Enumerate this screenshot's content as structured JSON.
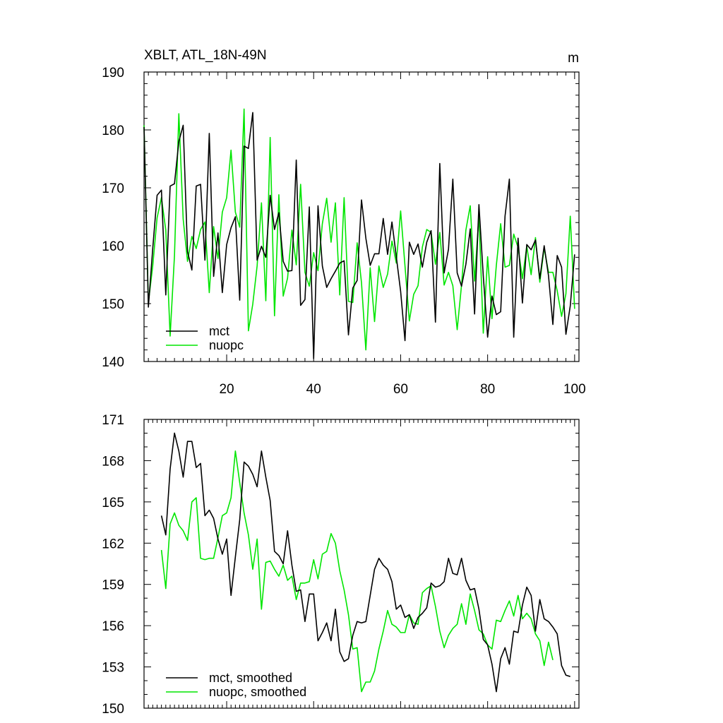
{
  "figure": {
    "title": "XBLT, ATL_18N-49N",
    "units": "m"
  },
  "chart_data": [
    {
      "type": "line",
      "title": "XBLT, ATL_18N-49N",
      "units_label": "m",
      "xlim": [
        1,
        101
      ],
      "ylim": [
        140,
        190
      ],
      "x_ticks": [
        20,
        40,
        60,
        80,
        100
      ],
      "x_tick_labels": [
        "20",
        "40",
        "60",
        "80",
        "100"
      ],
      "y_ticks": [
        140,
        150,
        160,
        170,
        180,
        190
      ],
      "y_tick_labels": [
        "140",
        "150",
        "160",
        "170",
        "180",
        "190"
      ],
      "legend_placement": "bottom-left",
      "series": [
        {
          "name": "mct",
          "color": "#000000",
          "x_start": 1,
          "values": [
            180.5,
            149.4,
            159.5,
            168.7,
            169.6,
            151.5,
            170.3,
            170.7,
            178.0,
            180.8,
            159.0,
            155.8,
            170.3,
            170.6,
            157.5,
            179.4,
            154.7,
            162.2,
            151.9,
            160.2,
            163.1,
            165.0,
            150.6,
            177.2,
            176.8,
            183.0,
            157.5,
            159.9,
            158.0,
            168.7,
            162.8,
            165.7,
            157.3,
            155.6,
            155.7,
            174.8,
            149.7,
            150.7,
            166.7,
            140.5,
            166.9,
            156.5,
            152.8,
            154.3,
            155.6,
            157.0,
            157.4,
            144.6,
            152.7,
            154.0,
            167.9,
            161.3,
            156.6,
            158.6,
            158.6,
            164.7,
            158.5,
            164.1,
            158.1,
            152.1,
            143.6,
            160.6,
            158.5,
            160.3,
            156.3,
            160.6,
            162.6,
            146.8,
            174.2,
            155.3,
            159.4,
            171.5,
            155.3,
            153.0,
            156.8,
            162.9,
            148.2,
            167.1,
            154.8,
            144.2,
            151.3,
            148.1,
            148.6,
            165.1,
            171.5,
            144.2,
            161.3,
            150.1,
            160.2,
            159.3,
            161.0,
            154.3,
            160.0,
            154.8,
            146.4,
            158.3,
            156.3,
            144.7,
            149.6,
            158.5
          ]
        },
        {
          "name": "nuopc",
          "color": "#00e600",
          "x_start": 1,
          "values": [
            180.8,
            150.2,
            156.5,
            164.8,
            168.3,
            162.7,
            144.4,
            158.3,
            182.8,
            164.6,
            157.3,
            161.6,
            159.5,
            162.8,
            164.1,
            151.9,
            163.3,
            157.8,
            165.8,
            168.3,
            176.5,
            165.8,
            163.2,
            183.6,
            145.3,
            149.9,
            156.5,
            167.4,
            150.5,
            178.7,
            147.9,
            168.8,
            151.3,
            154.4,
            162.7,
            156.7,
            170.6,
            155.4,
            153.0,
            158.8,
            155.7,
            163.8,
            168.2,
            160.6,
            167.4,
            151.5,
            168.3,
            150.4,
            150.2,
            160.5,
            153.6,
            142.0,
            156.2,
            146.9,
            156.5,
            152.8,
            155.1,
            160.8,
            157.0,
            166.0,
            156.5,
            147.0,
            151.6,
            153.1,
            159.8,
            162.8,
            162.3,
            156.8,
            162.3,
            153.2,
            155.4,
            153.1,
            145.5,
            153.2,
            162.7,
            166.9,
            153.9,
            165.3,
            144.9,
            158.1,
            147.4,
            156.6,
            163.8,
            156.3,
            156.6,
            162.0,
            159.7,
            154.3,
            159.9,
            155.0,
            161.4,
            153.7,
            159.6,
            155.4,
            155.4,
            152.2,
            147.8,
            151.7,
            165.1,
            149.1
          ]
        }
      ]
    },
    {
      "type": "line",
      "xlim": [
        1,
        101
      ],
      "ylim": [
        150,
        171
      ],
      "x_ticks": [
        20,
        40,
        60,
        80,
        100
      ],
      "x_tick_labels": [],
      "y_ticks": [
        150,
        153,
        156,
        159,
        162,
        165,
        168,
        171
      ],
      "y_tick_labels": [
        "150",
        "153",
        "156",
        "159",
        "162",
        "165",
        "168",
        "171"
      ],
      "legend_placement": "bottom-left",
      "series": [
        {
          "name": "mct, smoothed",
          "color": "#000000",
          "x_start": 5,
          "values": [
            164.0,
            162.6,
            167.4,
            170.0,
            168.7,
            166.8,
            169.4,
            169.4,
            167.5,
            167.8,
            164.0,
            164.4,
            163.8,
            162.3,
            161.2,
            162.3,
            158.2,
            161.0,
            163.7,
            167.9,
            167.6,
            167.0,
            166.1,
            168.7,
            166.8,
            165.1,
            161.4,
            161.1,
            160.5,
            162.9,
            160.4,
            158.5,
            158.6,
            156.3,
            158.3,
            158.3,
            154.9,
            155.5,
            156.2,
            154.9,
            157.2,
            154.1,
            153.4,
            153.6,
            155.3,
            156.3,
            156.2,
            156.3,
            158.2,
            160.1,
            160.9,
            160.4,
            160.1,
            159.2,
            157.2,
            157.5,
            156.6,
            156.8,
            155.8,
            156.6,
            156.9,
            157.3,
            159.1,
            158.8,
            158.9,
            159.2,
            160.9,
            159.8,
            159.7,
            160.9,
            159.3,
            158.6,
            158.7,
            157.2,
            155.0,
            154.6,
            153.2,
            151.2,
            153.6,
            154.4,
            153.2,
            155.6,
            155.5,
            157.5,
            158.8,
            158.2,
            155.6,
            157.9,
            156.5,
            156.3,
            155.9,
            155.4,
            153.1,
            152.4,
            152.3
          ]
        },
        {
          "name": "nuopc, smoothed",
          "color": "#00e600",
          "x_start": 5,
          "values": [
            161.5,
            158.7,
            163.4,
            164.2,
            163.3,
            162.9,
            162.2,
            165.0,
            165.3,
            160.9,
            160.8,
            160.9,
            160.9,
            162.4,
            164.0,
            164.2,
            165.3,
            168.7,
            166.4,
            164.2,
            162.6,
            160.1,
            162.3,
            157.2,
            160.6,
            160.7,
            160.1,
            159.6,
            160.4,
            159.3,
            159.6,
            157.9,
            159.1,
            159.1,
            159.2,
            160.8,
            159.4,
            161.2,
            161.4,
            162.7,
            162.0,
            160.0,
            158.6,
            156.8,
            154.3,
            154.4,
            151.2,
            151.9,
            151.9,
            152.7,
            154.3,
            155.6,
            157.1,
            156.1,
            155.9,
            155.5,
            155.5,
            156.8,
            156.2,
            156.1,
            158.4,
            158.7,
            158.9,
            157.4,
            155.6,
            154.4,
            155.3,
            155.8,
            156.1,
            157.6,
            156.1,
            158.3,
            157.1,
            155.7,
            155.4,
            154.6,
            154.3,
            156.4,
            156.3,
            157.1,
            157.8,
            156.7,
            158.2,
            156.5,
            156.9,
            156.5,
            155.4,
            154.9,
            153.1,
            154.8,
            153.5
          ]
        }
      ]
    }
  ]
}
